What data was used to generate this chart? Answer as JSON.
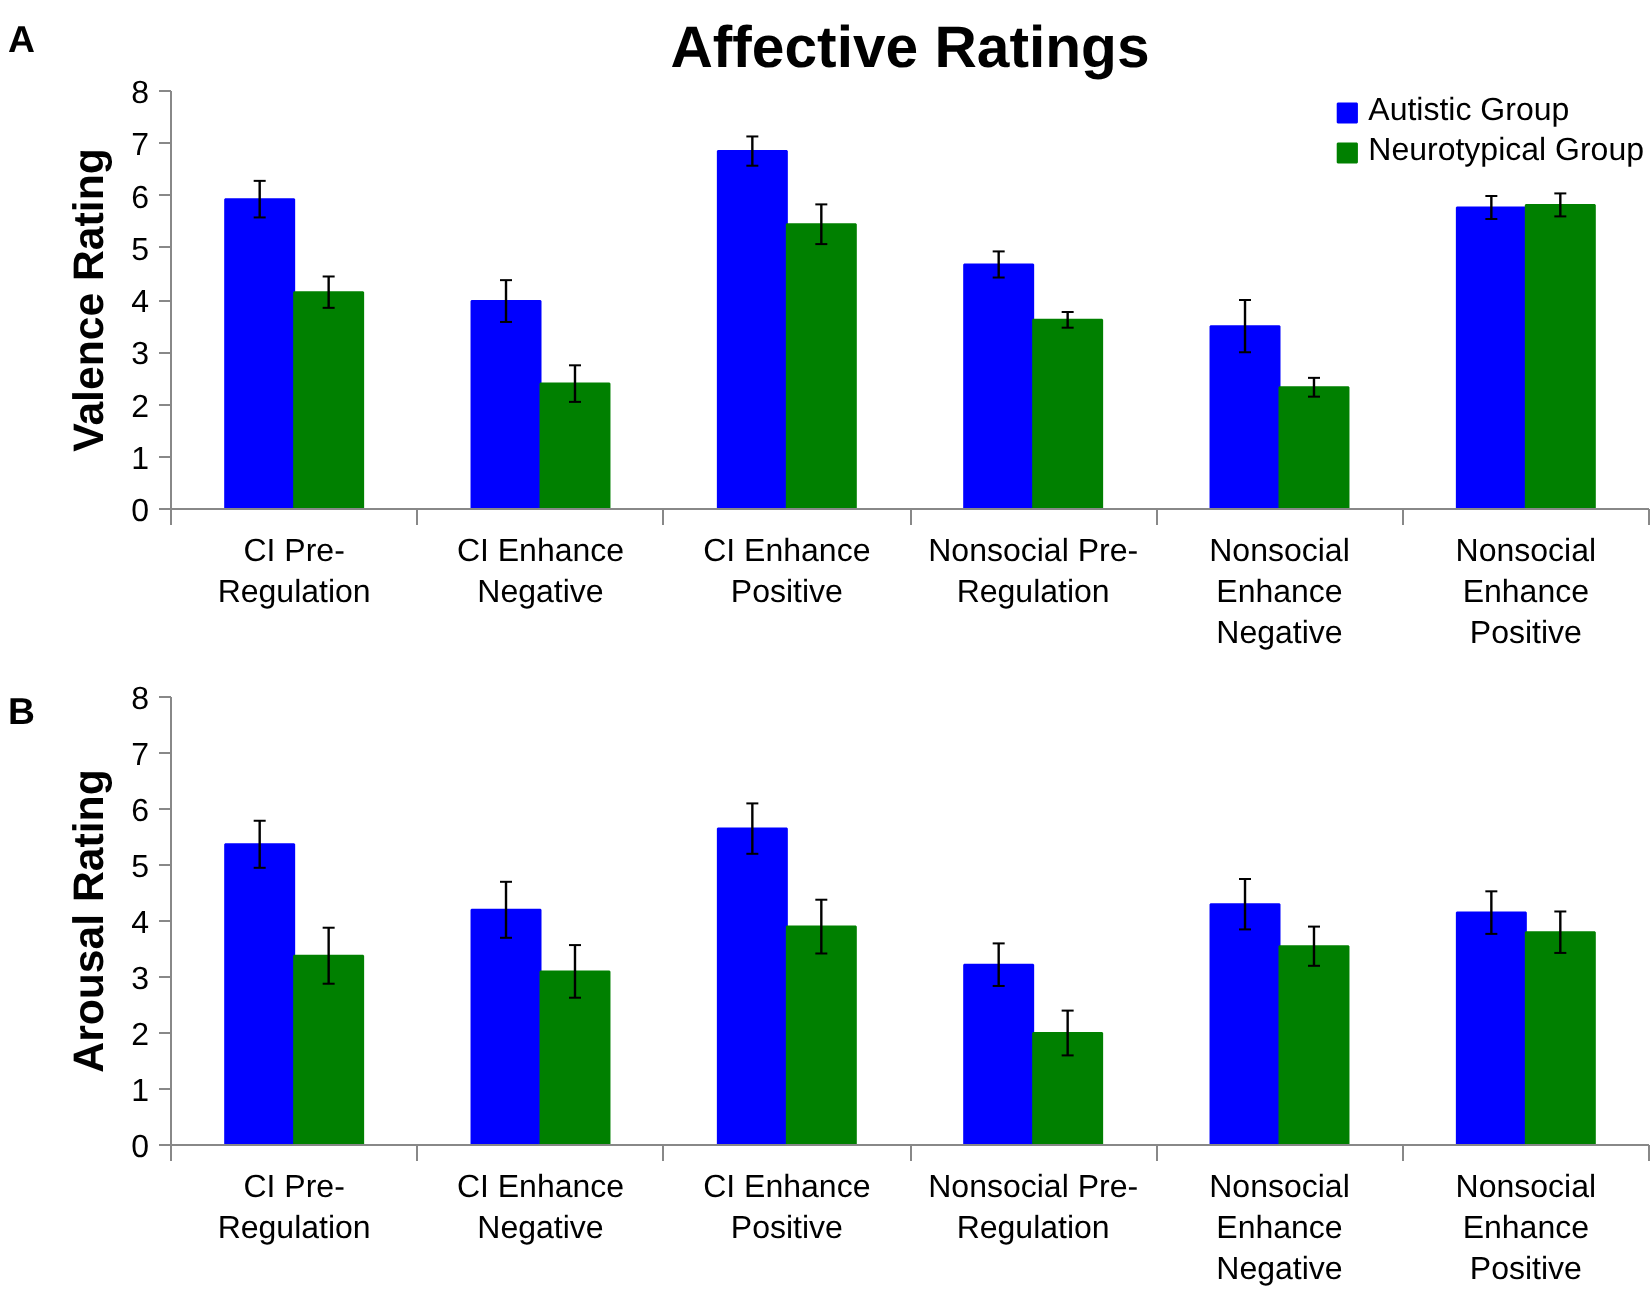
{
  "chart_data": [
    {
      "type": "bar",
      "title": "Affective Ratings",
      "ylabel": "Valence Rating",
      "annotations": [
        "A"
      ],
      "categories": [
        "CI Pre-\nRegulation",
        "CI Enhance\nNegative",
        "CI Enhance\nPositive",
        "Nonsocial Pre-\nRegulation",
        "Nonsocial\nEnhance\nNegative",
        "Nonsocial\nEnhance\nPositive"
      ],
      "series": [
        {
          "name": "Autistic Group",
          "color": "#0000ff",
          "values": [
            5.93,
            3.98,
            6.85,
            4.68,
            3.5,
            5.77
          ],
          "errors": [
            0.35,
            0.4,
            0.28,
            0.25,
            0.5,
            0.22
          ]
        },
        {
          "name": "Neurotypical Group",
          "color": "#008000",
          "values": [
            4.15,
            2.4,
            5.45,
            3.62,
            2.33,
            5.82
          ],
          "errors": [
            0.3,
            0.35,
            0.38,
            0.15,
            0.18,
            0.22
          ]
        }
      ],
      "ylim": [
        0,
        8
      ],
      "yticks": [
        0,
        1,
        2,
        3,
        4,
        5,
        6,
        7,
        8
      ],
      "grid": false,
      "legend": "top right"
    },
    {
      "type": "bar",
      "ylabel": "Arousal Rating",
      "annotations": [
        "B"
      ],
      "categories": [
        "CI Pre-\nRegulation",
        "CI Enhance\nNegative",
        "CI Enhance\nPositive",
        "Nonsocial Pre-\nRegulation",
        "Nonsocial\nEnhance\nNegative",
        "Nonsocial\nEnhance\nPositive"
      ],
      "series": [
        {
          "color": "#0000ff",
          "values": [
            5.37,
            4.2,
            5.65,
            3.22,
            4.3,
            4.15
          ],
          "errors": [
            0.42,
            0.5,
            0.45,
            0.38,
            0.45,
            0.38
          ]
        },
        {
          "color": "#008000",
          "values": [
            3.38,
            3.1,
            3.9,
            2.0,
            3.55,
            3.8
          ],
          "errors": [
            0.5,
            0.47,
            0.48,
            0.4,
            0.35,
            0.37
          ]
        }
      ],
      "ylim": [
        0,
        8
      ],
      "yticks": [
        0,
        1,
        2,
        3,
        4,
        5,
        6,
        7,
        8
      ],
      "grid": false
    }
  ]
}
